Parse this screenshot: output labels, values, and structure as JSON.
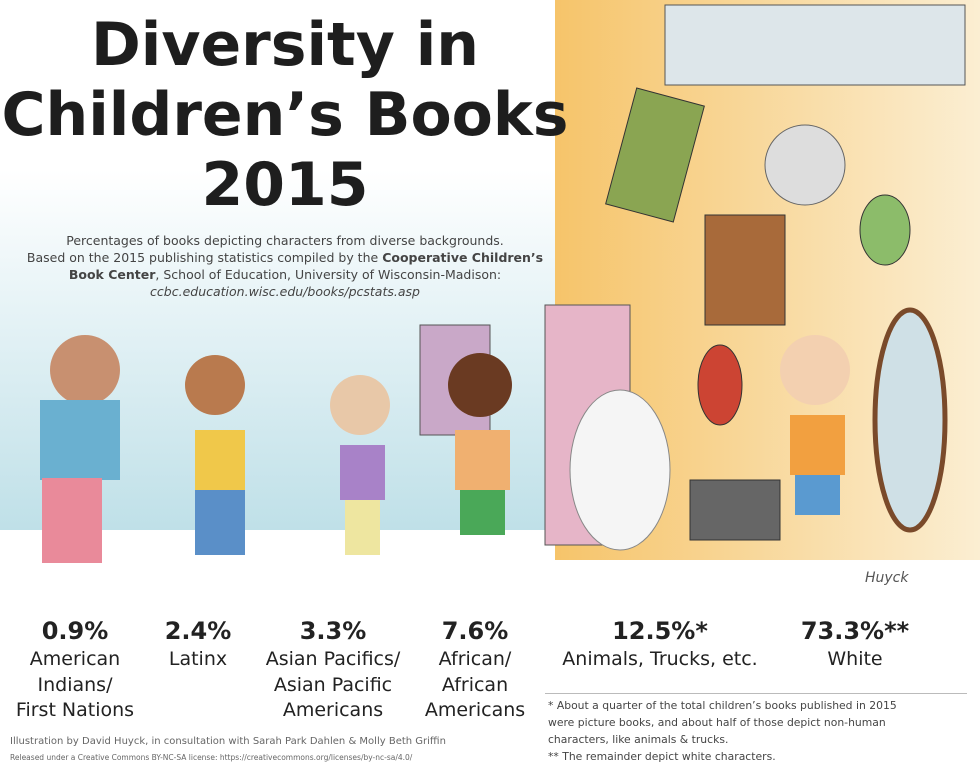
{
  "header": {
    "title": [
      "Diversity in",
      "Children’s Books",
      "2015"
    ],
    "subtitle": {
      "line1": "Percentages of books depicting characters from diverse backgrounds.",
      "line2": "Based on the 2015 publishing statistics compiled by the",
      "line2_bold": "Cooperative Children’s",
      "line3_bold": "Book Center",
      "line3": ", School of Education, University of Wisconsin-Madison:",
      "url": "ccbc.education.wisc.edu/books/pcstats.asp"
    }
  },
  "stats": [
    {
      "percent": "0.9%",
      "label": [
        "American",
        "Indians/",
        "First Nations"
      ]
    },
    {
      "percent": "2.4%",
      "label": [
        "Latinx"
      ]
    },
    {
      "percent": "3.3%",
      "label": [
        "Asian Pacifics/",
        "Asian Pacific",
        "Americans"
      ]
    },
    {
      "percent": "7.6%",
      "label": [
        "African/",
        "African",
        "Americans"
      ]
    },
    {
      "percent": "12.5%*",
      "label": [
        "Animals, Trucks, etc."
      ]
    },
    {
      "percent": "73.3%**",
      "label": [
        "White"
      ]
    }
  ],
  "footnotes": [
    "* About a quarter of the total children’s books published in 2015",
    "were picture books, and about half of those depict non-human",
    "characters, like animals & trucks.",
    "** The remainder depict white characters."
  ],
  "credits": [
    "Illustration by David Huyck, in consultation with Sarah Park Dahlen & Molly Beth Griffin",
    "Released under a Creative Commons BY-NC-SA license: https://creativecommons.org/licenses/by-nc-sa/4.0/"
  ],
  "signature": "Huyck"
}
